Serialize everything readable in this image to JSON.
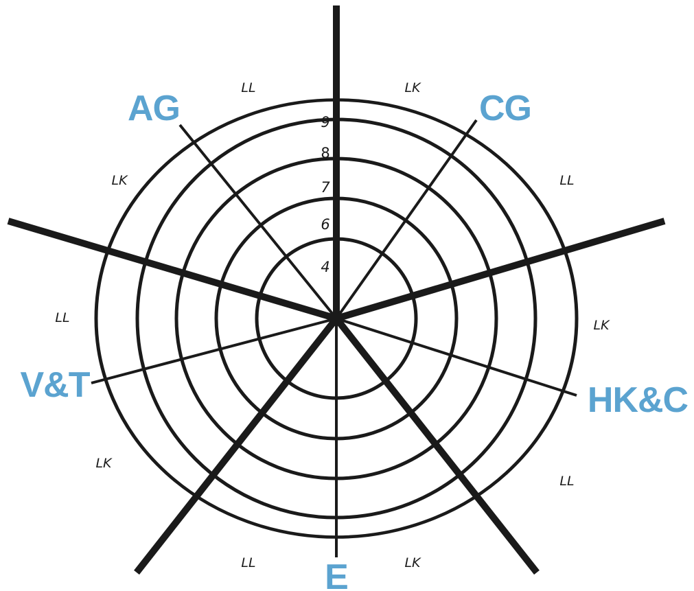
{
  "diagram": {
    "ring_labels": [
      "4",
      "6",
      "7",
      "8",
      "9"
    ],
    "axis_labels": [
      {
        "key": "cg",
        "text": "CG"
      },
      {
        "key": "hkc",
        "text": "HK&C"
      },
      {
        "key": "e",
        "text": "E"
      },
      {
        "key": "vt",
        "text": "V&T"
      },
      {
        "key": "ag",
        "text": "AG"
      }
    ],
    "segment_labels": [
      {
        "text": "LK"
      },
      {
        "text": "LL"
      },
      {
        "text": "LK"
      },
      {
        "text": "LL"
      },
      {
        "text": "LK"
      },
      {
        "text": "LL"
      },
      {
        "text": "LK"
      },
      {
        "text": "LL"
      },
      {
        "text": "LK"
      },
      {
        "text": "LL"
      }
    ],
    "colors": {
      "axis_label": "#5ba3d0",
      "line": "#1a1a1a"
    }
  }
}
